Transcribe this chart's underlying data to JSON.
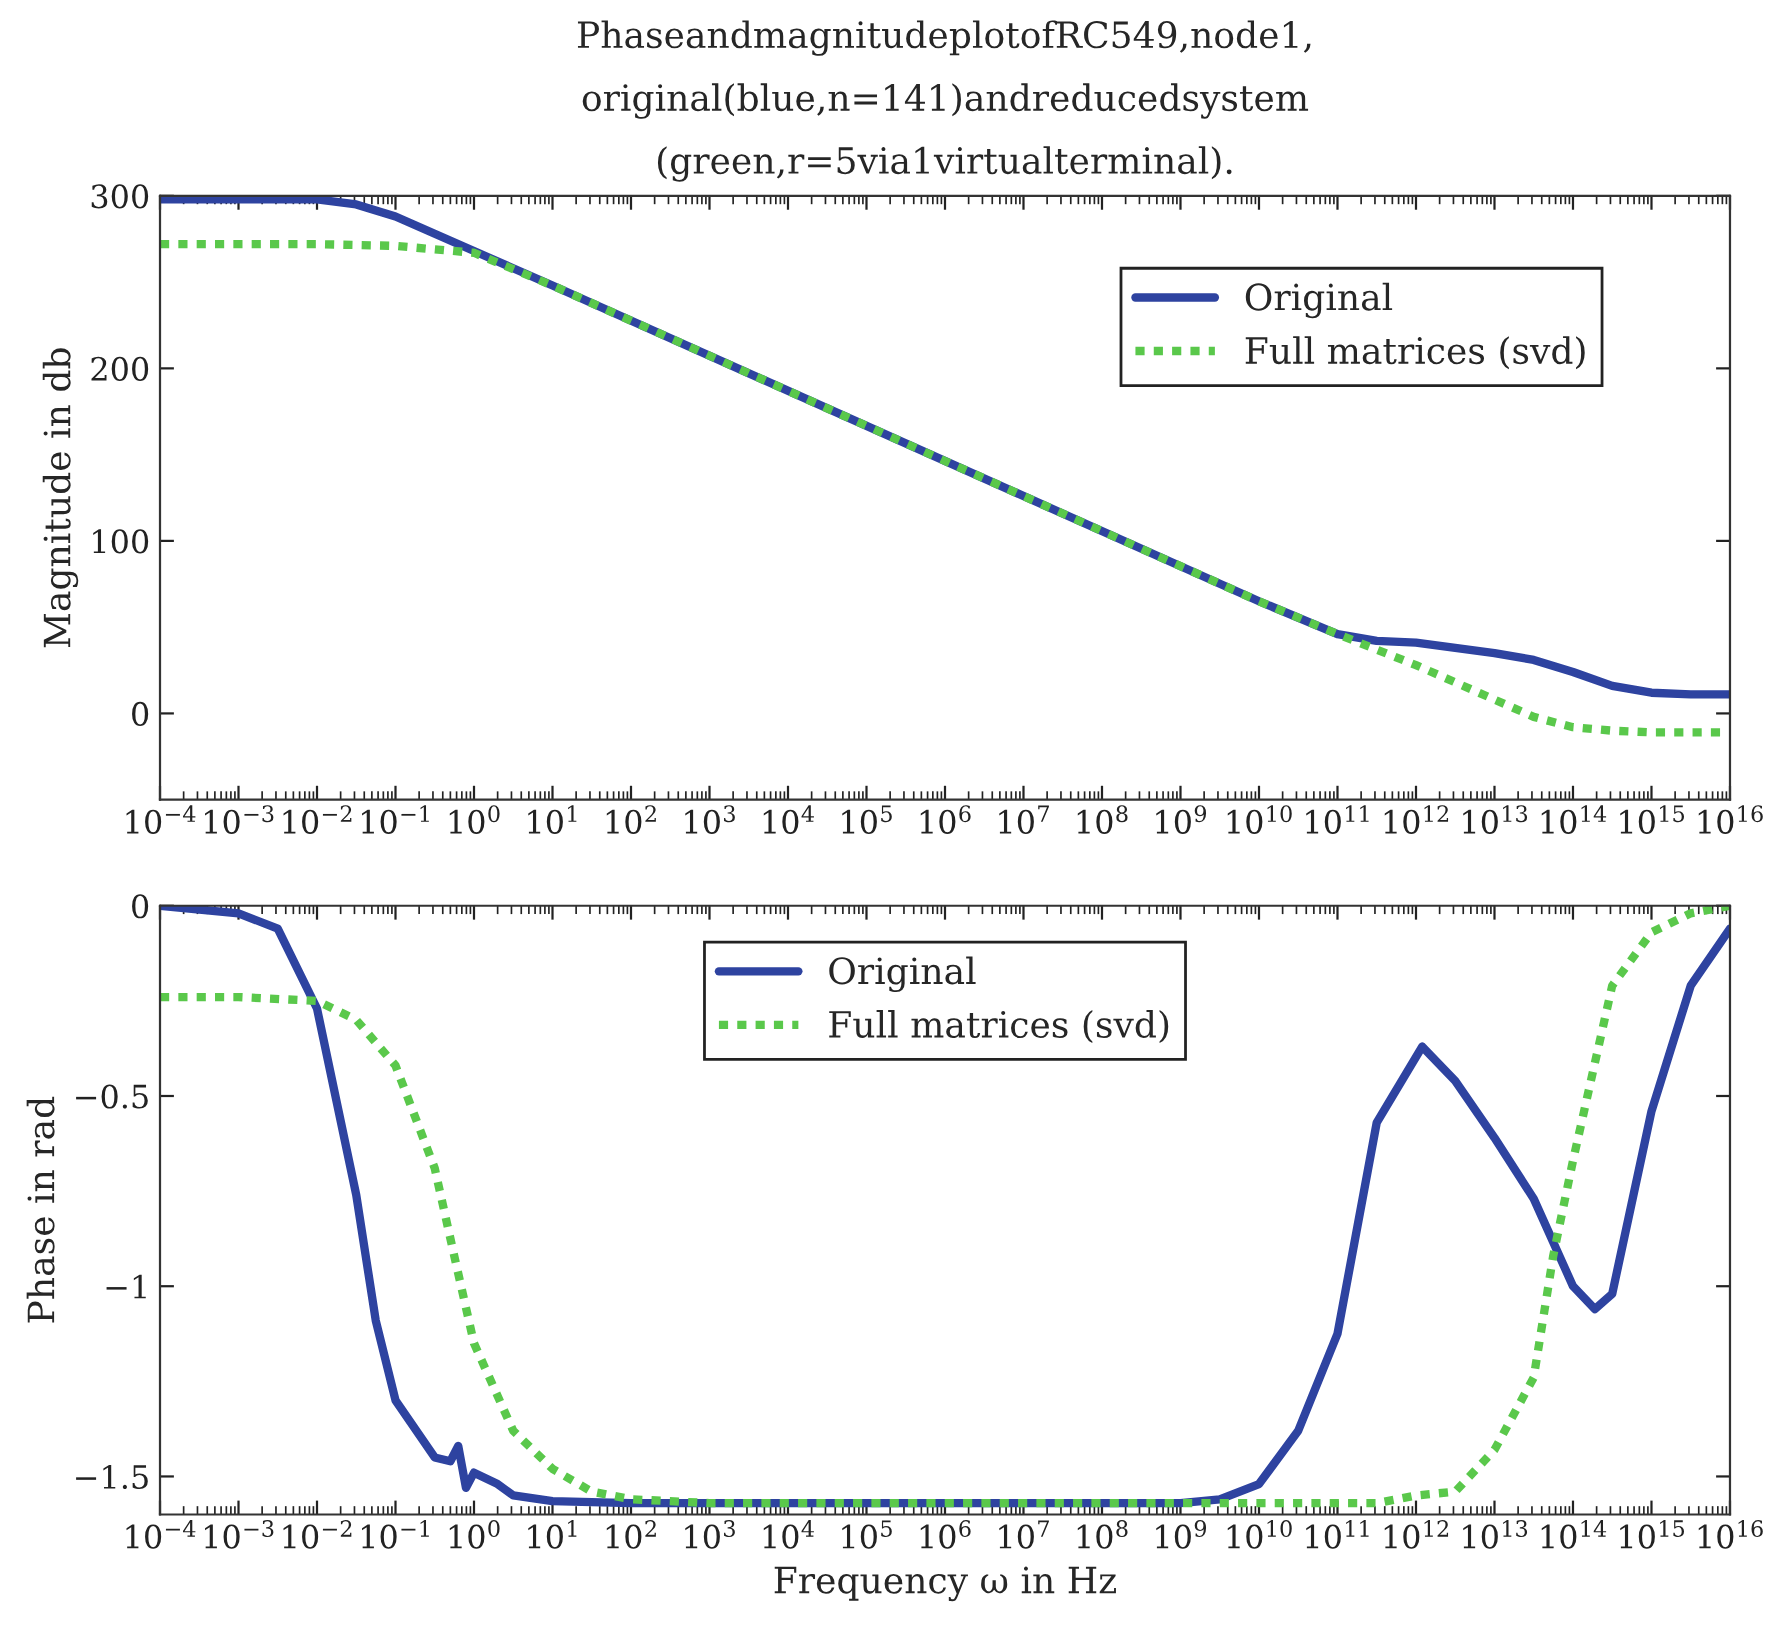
{
  "chart_data": [
    {
      "type": "line",
      "title": "PhaseandmagnitudeplotofRC549,node1,\noriginal(blue,n=141)andreducedsystem\n(green,r=5via1virtualterminal).",
      "ylabel": "Magnitude in db",
      "log": "x",
      "legend": "top right",
      "grid": false,
      "xlim": [
        0.0001,
        1e+16
      ],
      "xticks": [
        {
          "value": 0.0001,
          "label": "10$^{−4}$"
        },
        {
          "value": 0.001,
          "label": "10$^{−3}$"
        },
        {
          "value": 0.01,
          "label": "10$^{−2}$"
        },
        {
          "value": 0.1,
          "label": "10$^{−1}$"
        },
        {
          "value": 1,
          "label": "10$^{0}$"
        },
        {
          "value": 10,
          "label": "10$^{1}$"
        },
        {
          "value": 100,
          "label": "10$^{2}$"
        },
        {
          "value": 1000.0,
          "label": "10$^{3}$"
        },
        {
          "value": 10000.0,
          "label": "10$^{4}$"
        },
        {
          "value": 100000.0,
          "label": "10$^{5}$"
        },
        {
          "value": 1000000.0,
          "label": "10$^{6}$"
        },
        {
          "value": 10000000.0,
          "label": "10$^{7}$"
        },
        {
          "value": 100000000.0,
          "label": "10$^{8}$"
        },
        {
          "value": 1000000000.0,
          "label": "10$^{9}$"
        },
        {
          "value": 10000000000.0,
          "label": "10$^{10}$"
        },
        {
          "value": 100000000000.0,
          "label": "10$^{11}$"
        },
        {
          "value": 1000000000000.0,
          "label": "10$^{12}$"
        },
        {
          "value": 10000000000000.0,
          "label": "10$^{13}$"
        },
        {
          "value": 100000000000000.0,
          "label": "10$^{14}$"
        },
        {
          "value": 1000000000000000.0,
          "label": "10$^{15}$"
        },
        {
          "value": 1e+16,
          "label": "10$^{16}$"
        }
      ],
      "ylim": [
        -50,
        300
      ],
      "yticks": [
        0,
        100,
        200,
        300
      ],
      "series": [
        {
          "name": "Original",
          "color": "#2e43a0",
          "line_style": "solid",
          "x": [
            0.0001,
            0.001,
            0.01,
            0.0316,
            0.1,
            0.316,
            1,
            10,
            10000000000.0,
            100000000000.0,
            316000000000.0,
            1000000000000.0,
            3160000000000.0,
            10000000000000.0,
            31600000000000.0,
            100000000000000.0,
            316000000000000.0,
            1000000000000000.0,
            3160000000000000.0,
            1e+16
          ],
          "values": [
            298,
            298,
            298,
            295,
            288,
            278,
            268,
            248,
            65,
            46,
            42,
            41,
            38,
            35,
            31,
            24,
            16,
            12,
            11,
            11
          ]
        },
        {
          "name": "Full matrices (svd)",
          "color": "#5ac84b",
          "line_style": "dotted",
          "x": [
            0.0001,
            0.001,
            0.01,
            0.1,
            0.316,
            1,
            10,
            10000000000.0,
            100000000000.0,
            316000000000.0,
            1000000000000.0,
            3160000000000.0,
            10000000000000.0,
            31600000000000.0,
            100000000000000.0,
            316000000000000.0,
            1000000000000000.0,
            1e+16
          ],
          "values": [
            272,
            272,
            272,
            271,
            269,
            267,
            248,
            65,
            46,
            37,
            28,
            18,
            8,
            -2,
            -8,
            -10,
            -11,
            -11
          ]
        }
      ]
    },
    {
      "type": "line",
      "xlabel": "Frequency ω in Hz",
      "ylabel": "Phase in rad",
      "log": "x",
      "legend": "top",
      "grid": false,
      "xlim": [
        0.0001,
        1e+16
      ],
      "xticks": [
        {
          "value": 0.0001,
          "label": "10$^{−4}$"
        },
        {
          "value": 0.001,
          "label": "10$^{−3}$"
        },
        {
          "value": 0.01,
          "label": "10$^{−2}$"
        },
        {
          "value": 0.1,
          "label": "10$^{−1}$"
        },
        {
          "value": 1,
          "label": "10$^{0}$"
        },
        {
          "value": 10,
          "label": "10$^{1}$"
        },
        {
          "value": 100,
          "label": "10$^{2}$"
        },
        {
          "value": 1000.0,
          "label": "10$^{3}$"
        },
        {
          "value": 10000.0,
          "label": "10$^{4}$"
        },
        {
          "value": 100000.0,
          "label": "10$^{5}$"
        },
        {
          "value": 1000000.0,
          "label": "10$^{6}$"
        },
        {
          "value": 10000000.0,
          "label": "10$^{7}$"
        },
        {
          "value": 100000000.0,
          "label": "10$^{8}$"
        },
        {
          "value": 1000000000.0,
          "label": "10$^{9}$"
        },
        {
          "value": 10000000000.0,
          "label": "10$^{10}$"
        },
        {
          "value": 100000000000.0,
          "label": "10$^{11}$"
        },
        {
          "value": 1000000000000.0,
          "label": "10$^{12}$"
        },
        {
          "value": 10000000000000.0,
          "label": "10$^{13}$"
        },
        {
          "value": 100000000000000.0,
          "label": "10$^{14}$"
        },
        {
          "value": 1000000000000000.0,
          "label": "10$^{15}$"
        },
        {
          "value": 1e+16,
          "label": "10$^{16}$"
        }
      ],
      "ylim": [
        -1.6,
        0
      ],
      "yticks": [
        {
          "value": -1.5,
          "label": "−1.5"
        },
        {
          "value": -1,
          "label": "−1"
        },
        {
          "value": -0.5,
          "label": "−0.5"
        },
        0
      ],
      "series": [
        {
          "name": "Original",
          "color": "#2e43a0",
          "line_style": "solid",
          "x": [
            0.0001,
            0.001,
            0.00316,
            0.01,
            0.0316,
            0.056,
            0.1,
            0.316,
            0.5,
            0.63,
            0.79,
            1,
            2,
            3.16,
            10,
            100,
            1000000000.0,
            3160000000.0,
            10000000000.0,
            31600000000.0,
            100000000000.0,
            316000000000.0,
            1200000000000.0,
            3160000000000.0,
            10000000000000.0,
            31600000000000.0,
            100000000000000.0,
            190000000000000.0,
            316000000000000.0,
            1000000000000000.0,
            3160000000000000.0,
            1e+16
          ],
          "values": [
            0,
            -0.02,
            -0.06,
            -0.27,
            -0.76,
            -1.09,
            -1.3,
            -1.45,
            -1.46,
            -1.42,
            -1.53,
            -1.49,
            -1.52,
            -1.55,
            -1.565,
            -1.57,
            -1.57,
            -1.56,
            -1.52,
            -1.38,
            -1.125,
            -0.57,
            -0.37,
            -0.46,
            -0.61,
            -0.77,
            -1.0,
            -1.06,
            -1.02,
            -0.54,
            -0.21,
            -0.06
          ]
        },
        {
          "name": "Full matrices (svd)",
          "color": "#5ac84b",
          "line_style": "dotted",
          "x": [
            0.0001,
            0.001,
            0.01,
            0.0316,
            0.1,
            0.316,
            0.56,
            1,
            3.16,
            10,
            31.6,
            100,
            1000.0,
            316000000000.0,
            1000000000000.0,
            3160000000000.0,
            10000000000000.0,
            31600000000000.0,
            56000000000000.0,
            100000000000000.0,
            316000000000000.0,
            1000000000000000.0,
            3160000000000000.0,
            1e+16
          ],
          "values": [
            -0.24,
            -0.24,
            -0.25,
            -0.3,
            -0.42,
            -0.69,
            -0.92,
            -1.15,
            -1.38,
            -1.48,
            -1.54,
            -1.56,
            -1.57,
            -1.57,
            -1.55,
            -1.54,
            -1.43,
            -1.24,
            -0.92,
            -0.67,
            -0.21,
            -0.07,
            -0.02,
            0
          ]
        }
      ]
    }
  ]
}
